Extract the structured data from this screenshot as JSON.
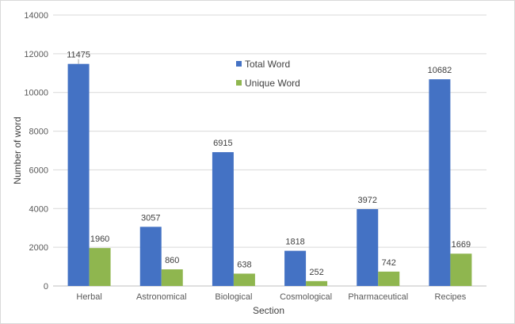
{
  "chart_data": {
    "type": "bar",
    "title": "",
    "xlabel": "Section",
    "ylabel": "Number of word",
    "ylim": [
      0,
      14000
    ],
    "yticks": [
      0,
      2000,
      4000,
      6000,
      8000,
      10000,
      12000,
      14000
    ],
    "grid": true,
    "legend_position": "top-center",
    "categories": [
      "Herbal",
      "Astronomical",
      "Biological",
      "Cosmological",
      "Pharmaceutical",
      "Recipes"
    ],
    "series": [
      {
        "name": "Total Word",
        "color": "#4472c4",
        "values": [
          11475,
          3057,
          6915,
          1818,
          3972,
          10682
        ]
      },
      {
        "name": "Unique Word",
        "color": "#8fb64f",
        "values": [
          1960,
          860,
          638,
          252,
          742,
          1669
        ]
      }
    ]
  }
}
